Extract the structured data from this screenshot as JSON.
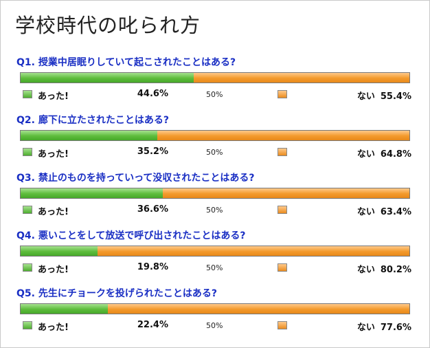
{
  "title": "学校時代の叱られ方",
  "mid_label": "50%",
  "chart_data": {
    "type": "bar",
    "orientation": "horizontal-stacked-100",
    "title": "学校時代の叱られ方",
    "series_names": [
      "あった!",
      "ない"
    ],
    "colors": {
      "yes": "#5ebc3c",
      "no": "#f39a2c"
    },
    "xlim": [
      0,
      100
    ],
    "questions": [
      {
        "label": "Q1. 授業中居眠りしていて起こされたことはある?",
        "yes": 44.6,
        "no": 55.4,
        "yes_text": "44.6%",
        "no_text": "55.4%"
      },
      {
        "label": "Q2. 廊下に立たされたことはある?",
        "yes": 35.2,
        "no": 64.8,
        "yes_text": "35.2%",
        "no_text": "64.8%"
      },
      {
        "label": "Q3. 禁止のものを持っていって没収されたことはある?",
        "yes": 36.6,
        "no": 63.4,
        "yes_text": "36.6%",
        "no_text": "63.4%"
      },
      {
        "label": "Q4. 悪いことをして放送で呼び出されたことはある?",
        "yes": 19.8,
        "no": 80.2,
        "yes_text": "19.8%",
        "no_text": "80.2%"
      },
      {
        "label": "Q5. 先生にチョークを投げられたことはある?",
        "yes": 22.4,
        "no": 77.6,
        "yes_text": "22.4%",
        "no_text": "77.6%"
      }
    ]
  }
}
